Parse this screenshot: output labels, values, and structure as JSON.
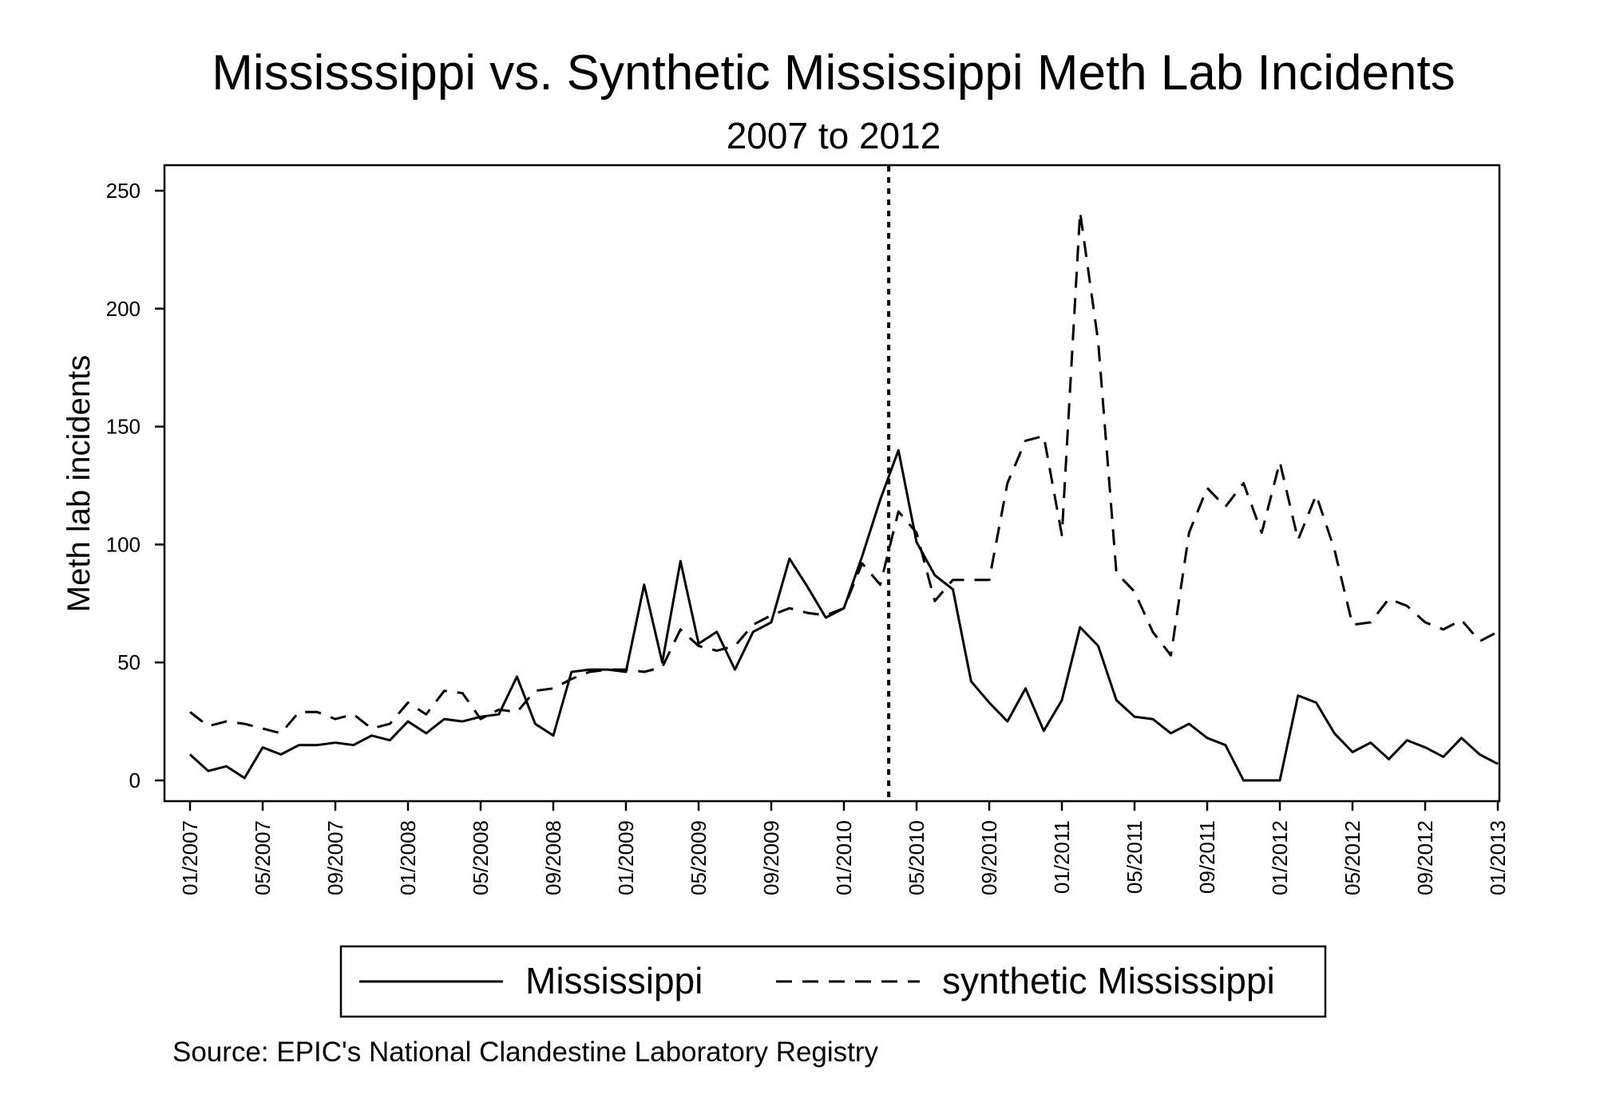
{
  "chart_data": {
    "type": "line",
    "title": "Mississsippi vs. Synthetic Mississippi Meth Lab Incidents",
    "subtitle": "2007 to 2012",
    "ylabel": "Meth lab incidents",
    "xlabel": "",
    "source": "Source: EPIC's National Clandestine Laboratory Registry",
    "x_start": "2007-01",
    "x_range": [
      "2007-01",
      "2013-01"
    ],
    "ylim": [
      -10,
      260
    ],
    "yticks": [
      0,
      50,
      100,
      150,
      200,
      250
    ],
    "xtick_labels": [
      "01/2007",
      "05/2007",
      "09/2007",
      "01/2008",
      "05/2008",
      "09/2008",
      "01/2009",
      "05/2009",
      "09/2009",
      "01/2010",
      "05/2010",
      "09/2010",
      "01/2011",
      "05/2011",
      "09/2011",
      "01/2012",
      "05/2012",
      "09/2012",
      "01/2013"
    ],
    "treatment_line": {
      "x": "2010-03-15",
      "style": "dotted"
    },
    "legend": {
      "position": "bottom"
    },
    "grid": false,
    "series": [
      {
        "name": "Mississippi",
        "style": "solid",
        "color": "#000000",
        "values": [
          11,
          4,
          6,
          1,
          14,
          11,
          15,
          15,
          16,
          15,
          19,
          17,
          25,
          20,
          26,
          25,
          27,
          28,
          44,
          24,
          19,
          46,
          47,
          47,
          46,
          83,
          50,
          93,
          58,
          63,
          47,
          63,
          67,
          94,
          82,
          69,
          73,
          95,
          119,
          140,
          101,
          87,
          81,
          42,
          33,
          25,
          39,
          21,
          34,
          65,
          57,
          34,
          27,
          26,
          20,
          24,
          18,
          15,
          0,
          0,
          0,
          36,
          33,
          20,
          12,
          16,
          9,
          17,
          14,
          10,
          18,
          11,
          7
        ]
      },
      {
        "name": "synthetic Mississippi",
        "style": "dashed",
        "color": "#000000",
        "values": [
          29,
          23,
          25,
          24,
          22,
          20,
          29,
          29,
          26,
          28,
          22,
          24,
          33,
          28,
          38,
          37,
          26,
          30,
          29,
          38,
          39,
          43,
          46,
          47,
          47,
          46,
          48,
          64,
          57,
          55,
          57,
          66,
          70,
          73,
          71,
          70,
          73,
          92,
          83,
          114,
          105,
          76,
          85,
          85,
          85,
          126,
          144,
          146,
          104,
          241,
          186,
          88,
          80,
          63,
          53,
          105,
          124,
          116,
          126,
          105,
          135,
          102,
          121,
          98,
          66,
          67,
          77,
          74,
          67,
          64,
          68,
          59,
          63
        ]
      }
    ]
  }
}
